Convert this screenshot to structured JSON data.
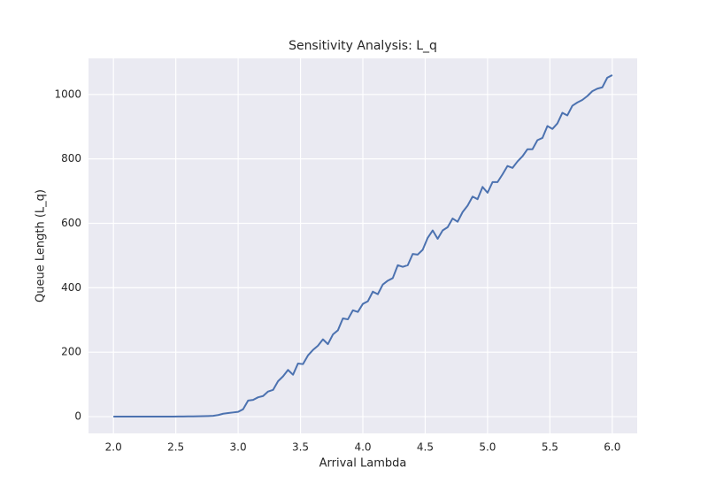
{
  "chart_data": {
    "type": "line",
    "title": "Sensitivity Analysis: L_q",
    "x_label": "Arrival Lambda",
    "y_label": "Queue Length (L_q)",
    "x": [
      2.0,
      2.04,
      2.08,
      2.12,
      2.16,
      2.2,
      2.24,
      2.28,
      2.32,
      2.36,
      2.4,
      2.44,
      2.48,
      2.52,
      2.56,
      2.6,
      2.64,
      2.68,
      2.72,
      2.76,
      2.8,
      2.84,
      2.88,
      2.92,
      2.96,
      3.0,
      3.04,
      3.08,
      3.12,
      3.16,
      3.2,
      3.24,
      3.28,
      3.32,
      3.36,
      3.4,
      3.44,
      3.48,
      3.52,
      3.56,
      3.6,
      3.64,
      3.68,
      3.72,
      3.76,
      3.8,
      3.84,
      3.88,
      3.92,
      3.96,
      4.0,
      4.04,
      4.08,
      4.12,
      4.16,
      4.2,
      4.24,
      4.28,
      4.32,
      4.36,
      4.4,
      4.44,
      4.48,
      4.52,
      4.56,
      4.6,
      4.64,
      4.68,
      4.72,
      4.76,
      4.8,
      4.84,
      4.88,
      4.92,
      4.96,
      5.0,
      5.04,
      5.08,
      5.12,
      5.16,
      5.2,
      5.24,
      5.28,
      5.32,
      5.36,
      5.4,
      5.44,
      5.48,
      5.52,
      5.56,
      5.6,
      5.64,
      5.68,
      5.72,
      5.76,
      5.8,
      5.84,
      5.88,
      5.92,
      5.96,
      6.0
    ],
    "series": [
      {
        "name": "L_q",
        "color": "#4c72b0",
        "values": [
          0,
          0,
          0,
          0,
          0,
          0,
          0,
          0,
          0,
          0,
          0.1,
          0.2,
          0.3,
          0.5,
          0.6,
          0.8,
          1,
          1.2,
          1.6,
          2,
          2.5,
          5,
          9,
          11,
          13,
          15,
          23,
          50,
          52,
          60,
          64,
          78,
          83,
          110,
          125,
          145,
          130,
          165,
          163,
          190,
          207,
          220,
          240,
          225,
          255,
          268,
          305,
          302,
          330,
          325,
          350,
          358,
          388,
          380,
          410,
          422,
          430,
          470,
          465,
          470,
          505,
          503,
          518,
          555,
          578,
          552,
          578,
          588,
          615,
          605,
          635,
          655,
          683,
          675,
          713,
          695,
          728,
          728,
          752,
          778,
          772,
          792,
          808,
          830,
          830,
          858,
          865,
          902,
          893,
          910,
          943,
          935,
          965,
          975,
          983,
          995,
          1010,
          1018,
          1022,
          1052,
          1060
        ]
      }
    ],
    "xlim": [
      1.8,
      6.2
    ],
    "ylim": [
      -52,
      1112
    ],
    "xticks": [
      {
        "value": 2,
        "label": "2.0"
      },
      {
        "value": 2.5,
        "label": "2.5"
      },
      {
        "value": 3,
        "label": "3.0"
      },
      {
        "value": 3.5,
        "label": "3.5"
      },
      {
        "value": 4,
        "label": "4.0"
      },
      {
        "value": 4.5,
        "label": "4.5"
      },
      {
        "value": 5,
        "label": "5.0"
      },
      {
        "value": 5.5,
        "label": "5.5"
      },
      {
        "value": 6,
        "label": "6.0"
      }
    ],
    "yticks": [
      0,
      200,
      400,
      600,
      800,
      1000
    ],
    "grid": true,
    "background": "#eaeaf2"
  }
}
